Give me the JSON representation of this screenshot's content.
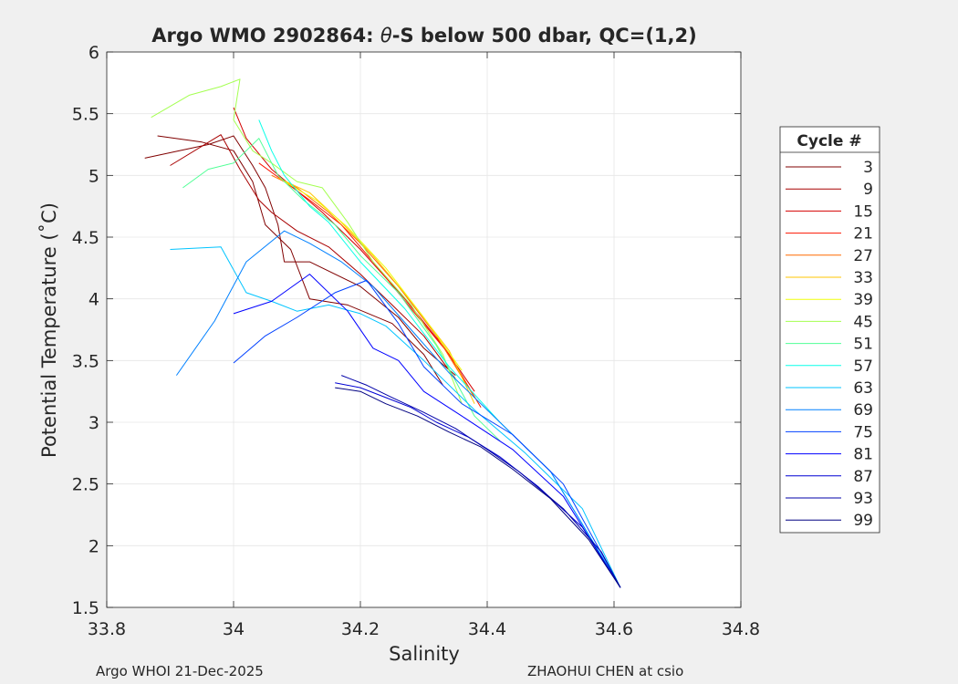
{
  "chart_data": {
    "type": "line",
    "title_prefix": "Argo WMO 2902864: ",
    "title_theta": "θ",
    "title_suffix": "-S below 500 dbar,  QC=(1,2)",
    "xlabel": "Salinity",
    "ylabel": "Potential Temperature (˚C)",
    "xlim": [
      33.8,
      34.8
    ],
    "ylim": [
      1.5,
      6
    ],
    "xticks": [
      33.8,
      34,
      34.2,
      34.4,
      34.6,
      34.8
    ],
    "xtick_labels": [
      "33.8",
      "34",
      "34.2",
      "34.4",
      "34.6",
      "34.8"
    ],
    "yticks": [
      1.5,
      2,
      2.5,
      3,
      3.5,
      4,
      4.5,
      5,
      5.5,
      6
    ],
    "ytick_labels": [
      "1.5",
      "2",
      "2.5",
      "3",
      "3.5",
      "4",
      "4.5",
      "5",
      "5.5",
      "6"
    ],
    "grid": true,
    "legend": {
      "title": "Cycle #",
      "placement": "right-outside",
      "entries": [
        {
          "label": "3",
          "color": "#800000"
        },
        {
          "label": "9",
          "color": "#a80000"
        },
        {
          "label": "15",
          "color": "#d40000"
        },
        {
          "label": "21",
          "color": "#fc1400"
        },
        {
          "label": "27",
          "color": "#ff6a00"
        },
        {
          "label": "33",
          "color": "#ffc400"
        },
        {
          "label": "39",
          "color": "#f0ff0c"
        },
        {
          "label": "45",
          "color": "#a4ff50"
        },
        {
          "label": "51",
          "color": "#50ff96"
        },
        {
          "label": "57",
          "color": "#08ffe8"
        },
        {
          "label": "63",
          "color": "#00c4ff"
        },
        {
          "label": "69",
          "color": "#0080ff"
        },
        {
          "label": "75",
          "color": "#0040ff"
        },
        {
          "label": "81",
          "color": "#0000ff"
        },
        {
          "label": "87",
          "color": "#0000d4"
        },
        {
          "label": "93",
          "color": "#0000a8"
        },
        {
          "label": "99",
          "color": "#000080"
        }
      ]
    },
    "series": [
      {
        "color": "#800000",
        "points": [
          [
            33.86,
            5.14
          ],
          [
            33.96,
            5.25
          ],
          [
            34.0,
            5.32
          ],
          [
            34.03,
            5.08
          ],
          [
            34.05,
            4.9
          ],
          [
            34.07,
            4.6
          ],
          [
            34.08,
            4.3
          ],
          [
            34.12,
            4.3
          ],
          [
            34.2,
            4.1
          ],
          [
            34.26,
            3.85
          ],
          [
            34.3,
            3.6
          ],
          [
            34.35,
            3.38
          ]
        ]
      },
      {
        "color": "#800000",
        "points": [
          [
            33.88,
            5.32
          ],
          [
            33.95,
            5.27
          ],
          [
            34.0,
            5.2
          ],
          [
            34.03,
            4.95
          ],
          [
            34.05,
            4.6
          ],
          [
            34.09,
            4.4
          ],
          [
            34.12,
            4.0
          ],
          [
            34.18,
            3.95
          ],
          [
            34.25,
            3.8
          ],
          [
            34.3,
            3.55
          ],
          [
            34.33,
            3.3
          ]
        ]
      },
      {
        "color": "#a80000",
        "points": [
          [
            33.9,
            5.08
          ],
          [
            33.98,
            5.33
          ],
          [
            34.01,
            5.05
          ],
          [
            34.04,
            4.8
          ],
          [
            34.06,
            4.7
          ],
          [
            34.1,
            4.55
          ],
          [
            34.15,
            4.42
          ],
          [
            34.2,
            4.2
          ],
          [
            34.25,
            3.95
          ],
          [
            34.3,
            3.7
          ],
          [
            34.35,
            3.35
          ]
        ]
      },
      {
        "color": "#d40000",
        "points": [
          [
            34.0,
            5.55
          ],
          [
            34.02,
            5.3
          ],
          [
            34.06,
            5.05
          ],
          [
            34.09,
            4.92
          ],
          [
            34.14,
            4.7
          ],
          [
            34.2,
            4.4
          ],
          [
            34.27,
            4.0
          ],
          [
            34.33,
            3.62
          ],
          [
            34.38,
            3.25
          ]
        ]
      },
      {
        "color": "#fc1400",
        "points": [
          [
            34.04,
            5.1
          ],
          [
            34.08,
            4.95
          ],
          [
            34.12,
            4.8
          ],
          [
            34.17,
            4.6
          ],
          [
            34.22,
            4.3
          ],
          [
            34.28,
            3.92
          ],
          [
            34.34,
            3.55
          ],
          [
            34.39,
            3.12
          ]
        ]
      },
      {
        "color": "#ff6a00",
        "points": [
          [
            34.06,
            5.0
          ],
          [
            34.1,
            4.9
          ],
          [
            34.15,
            4.7
          ],
          [
            34.2,
            4.45
          ],
          [
            34.26,
            4.1
          ],
          [
            34.32,
            3.7
          ],
          [
            34.38,
            3.2
          ]
        ]
      },
      {
        "color": "#ffc400",
        "points": [
          [
            34.07,
            4.98
          ],
          [
            34.12,
            4.86
          ],
          [
            34.17,
            4.62
          ],
          [
            34.22,
            4.35
          ],
          [
            34.28,
            3.98
          ],
          [
            34.34,
            3.58
          ],
          [
            34.38,
            3.15
          ]
        ]
      },
      {
        "color": "#f0ff0c",
        "points": [
          [
            34.08,
            4.95
          ],
          [
            34.13,
            4.8
          ],
          [
            34.18,
            4.58
          ],
          [
            34.24,
            4.25
          ],
          [
            34.3,
            3.85
          ],
          [
            34.36,
            3.42
          ]
        ]
      },
      {
        "color": "#a4ff50",
        "points": [
          [
            33.87,
            5.47
          ],
          [
            33.93,
            5.65
          ],
          [
            33.98,
            5.72
          ],
          [
            34.01,
            5.78
          ],
          [
            34.0,
            5.45
          ],
          [
            34.03,
            5.2
          ],
          [
            34.06,
            5.1
          ],
          [
            34.1,
            4.95
          ],
          [
            34.14,
            4.9
          ],
          [
            34.18,
            4.62
          ],
          [
            34.22,
            4.3
          ],
          [
            34.28,
            3.95
          ],
          [
            34.33,
            3.55
          ],
          [
            34.36,
            3.15
          ]
        ]
      },
      {
        "color": "#50ff96",
        "points": [
          [
            33.92,
            4.9
          ],
          [
            33.96,
            5.05
          ],
          [
            34.0,
            5.1
          ],
          [
            34.04,
            5.3
          ],
          [
            34.07,
            5.0
          ],
          [
            34.11,
            4.8
          ],
          [
            34.16,
            4.6
          ],
          [
            34.2,
            4.35
          ],
          [
            34.26,
            4.05
          ],
          [
            34.32,
            3.62
          ],
          [
            34.38,
            3.05
          ],
          [
            34.42,
            2.85
          ]
        ]
      },
      {
        "color": "#08ffe8",
        "points": [
          [
            34.04,
            5.45
          ],
          [
            34.06,
            5.2
          ],
          [
            34.08,
            5.0
          ],
          [
            34.12,
            4.75
          ],
          [
            34.15,
            4.62
          ],
          [
            34.2,
            4.3
          ],
          [
            34.27,
            3.92
          ],
          [
            34.34,
            3.45
          ],
          [
            34.42,
            3.0
          ],
          [
            34.5,
            2.6
          ],
          [
            34.6,
            1.75
          ]
        ]
      },
      {
        "color": "#00c4ff",
        "points": [
          [
            33.9,
            4.4
          ],
          [
            33.98,
            4.42
          ],
          [
            34.02,
            4.05
          ],
          [
            34.06,
            3.98
          ],
          [
            34.1,
            3.9
          ],
          [
            34.15,
            3.95
          ],
          [
            34.2,
            3.88
          ],
          [
            34.24,
            3.78
          ],
          [
            34.3,
            3.5
          ],
          [
            34.38,
            3.1
          ],
          [
            34.46,
            2.75
          ],
          [
            34.55,
            2.3
          ],
          [
            34.61,
            1.66
          ]
        ]
      },
      {
        "color": "#0080ff",
        "points": [
          [
            33.91,
            3.38
          ],
          [
            33.97,
            3.82
          ],
          [
            34.02,
            4.3
          ],
          [
            34.08,
            4.55
          ],
          [
            34.12,
            4.45
          ],
          [
            34.17,
            4.3
          ],
          [
            34.22,
            4.1
          ],
          [
            34.28,
            3.75
          ],
          [
            34.34,
            3.4
          ],
          [
            34.42,
            3.0
          ],
          [
            34.5,
            2.6
          ],
          [
            34.61,
            1.66
          ]
        ]
      },
      {
        "color": "#0040ff",
        "points": [
          [
            34.0,
            3.48
          ],
          [
            34.05,
            3.7
          ],
          [
            34.1,
            3.85
          ],
          [
            34.16,
            4.05
          ],
          [
            34.21,
            4.15
          ],
          [
            34.26,
            3.8
          ],
          [
            34.3,
            3.45
          ],
          [
            34.36,
            3.15
          ],
          [
            34.44,
            2.9
          ],
          [
            34.52,
            2.5
          ],
          [
            34.61,
            1.66
          ]
        ]
      },
      {
        "color": "#0000ff",
        "points": [
          [
            34.0,
            3.88
          ],
          [
            34.06,
            3.98
          ],
          [
            34.12,
            4.2
          ],
          [
            34.18,
            3.9
          ],
          [
            34.22,
            3.6
          ],
          [
            34.26,
            3.5
          ],
          [
            34.3,
            3.25
          ],
          [
            34.36,
            3.05
          ],
          [
            34.44,
            2.78
          ],
          [
            34.52,
            2.4
          ],
          [
            34.61,
            1.66
          ]
        ]
      },
      {
        "color": "#0000d4",
        "points": [
          [
            34.16,
            3.32
          ],
          [
            34.2,
            3.28
          ],
          [
            34.24,
            3.2
          ],
          [
            34.28,
            3.12
          ],
          [
            34.32,
            3.0
          ],
          [
            34.37,
            2.88
          ],
          [
            34.42,
            2.72
          ],
          [
            34.48,
            2.48
          ],
          [
            34.55,
            2.15
          ],
          [
            34.61,
            1.66
          ]
        ]
      },
      {
        "color": "#0000a8",
        "points": [
          [
            34.17,
            3.38
          ],
          [
            34.21,
            3.3
          ],
          [
            34.25,
            3.2
          ],
          [
            34.3,
            3.08
          ],
          [
            34.35,
            2.95
          ],
          [
            34.4,
            2.78
          ],
          [
            34.45,
            2.6
          ],
          [
            34.52,
            2.3
          ],
          [
            34.58,
            1.95
          ],
          [
            34.61,
            1.66
          ]
        ]
      },
      {
        "color": "#000080",
        "points": [
          [
            34.16,
            3.28
          ],
          [
            34.2,
            3.25
          ],
          [
            34.24,
            3.15
          ],
          [
            34.29,
            3.05
          ],
          [
            34.34,
            2.92
          ],
          [
            34.39,
            2.8
          ],
          [
            34.44,
            2.62
          ],
          [
            34.5,
            2.38
          ],
          [
            34.56,
            2.05
          ],
          [
            34.61,
            1.66
          ]
        ]
      }
    ]
  },
  "footer": {
    "left": "Argo WHOI 21-Dec-2025",
    "right": "ZHAOHUI CHEN at csio"
  }
}
